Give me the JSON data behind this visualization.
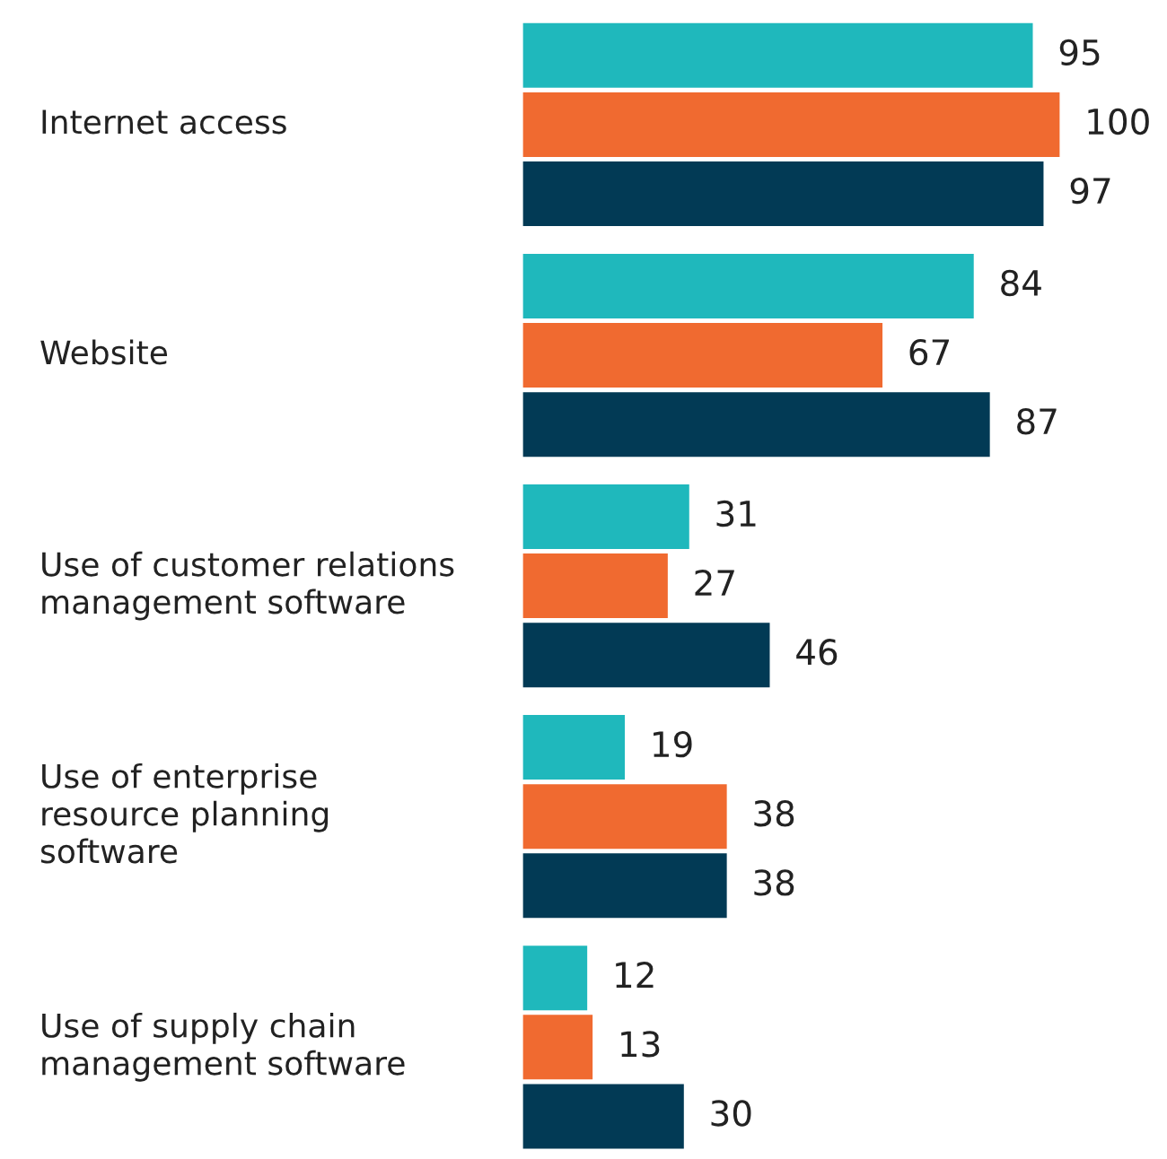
{
  "chart_data": {
    "type": "bar",
    "orientation": "horizontal",
    "categories": [
      "Internet access",
      "Website",
      "Use of customer relations\nmanagement software",
      "Use of enterprise\nresource planning\nsoftware",
      "Use of supply chain\nmanagement software"
    ],
    "series": [
      {
        "color": "#1fb8bc",
        "values": [
          95,
          84,
          31,
          19,
          12
        ]
      },
      {
        "color": "#f06a30",
        "values": [
          100,
          67,
          27,
          38,
          13
        ]
      },
      {
        "color": "#023a55",
        "values": [
          97,
          87,
          46,
          38,
          30
        ]
      }
    ],
    "data_labels": true
  }
}
